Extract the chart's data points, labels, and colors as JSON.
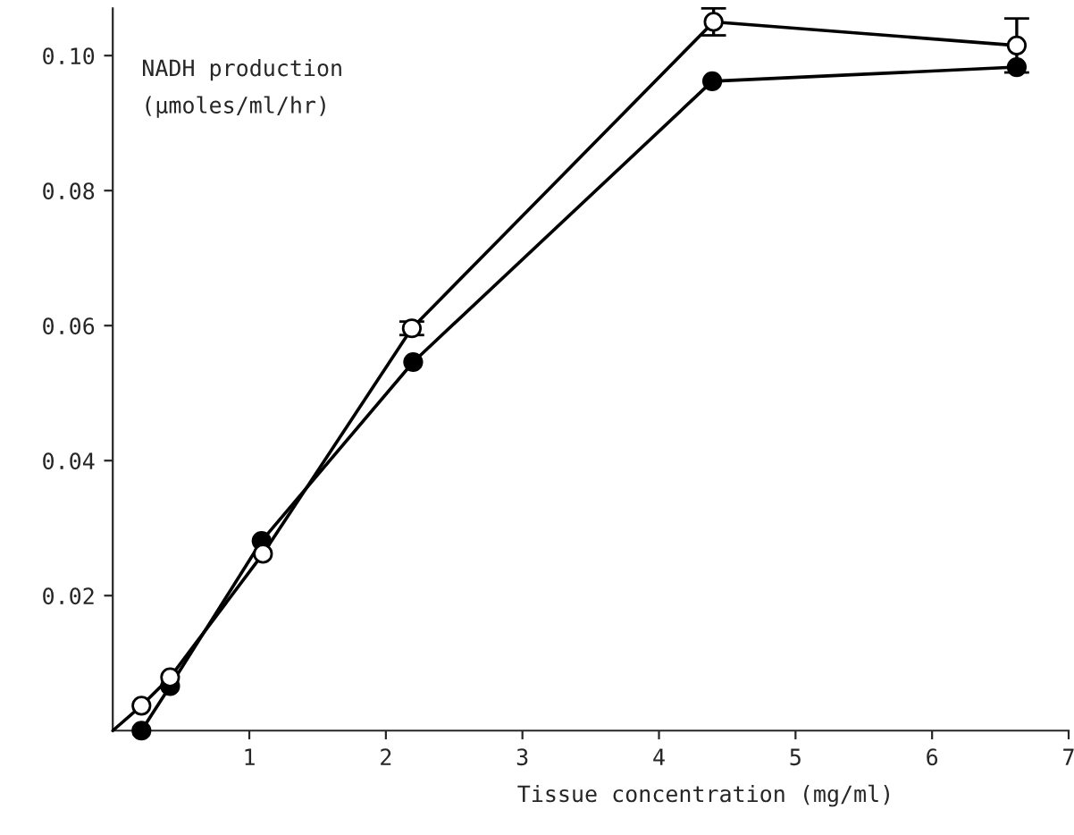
{
  "chart_data": {
    "type": "line",
    "xlabel": "Tissue concentration (mg/ml)",
    "ylabel": "NADH production\n(μmoles/ml/hr)",
    "series": [
      {
        "color": "#000000",
        "x": [
          0.21,
          0.42,
          1.1,
          2.19,
          4.4,
          6.62
        ],
        "values": [
          0.0037,
          0.0079,
          0.0262,
          0.0596,
          0.105,
          0.1015
        ],
        "errors": [
          null,
          null,
          null,
          0.001,
          0.002,
          0.004
        ]
      },
      {
        "color": "#000000",
        "x": [
          0.21,
          0.42,
          1.09,
          2.2,
          4.39,
          6.62
        ],
        "values": [
          0,
          0.0066,
          0.0281,
          0.0546,
          0.0962,
          0.0983
        ]
      },
      {
        "color": "#000000",
        "marker": "none",
        "x": [
          0,
          0.21
        ],
        "values": [
          0,
          0.0037
        ]
      }
    ],
    "marker": "circle",
    "line_style": "solid",
    "grid": false,
    "xlim": [
      0,
      7
    ],
    "xticks": [
      1,
      2,
      3,
      4,
      5,
      6,
      7
    ],
    "ylim": [
      0,
      0.107
    ],
    "yticks": [
      {
        "value": 0.02,
        "label": "0.02"
      },
      {
        "value": 0.04,
        "label": "0.04"
      },
      {
        "value": 0.06,
        "label": "0.06"
      },
      {
        "value": 0.08,
        "label": "0.08"
      },
      {
        "value": 0.1,
        "label": "0.10"
      }
    ]
  }
}
